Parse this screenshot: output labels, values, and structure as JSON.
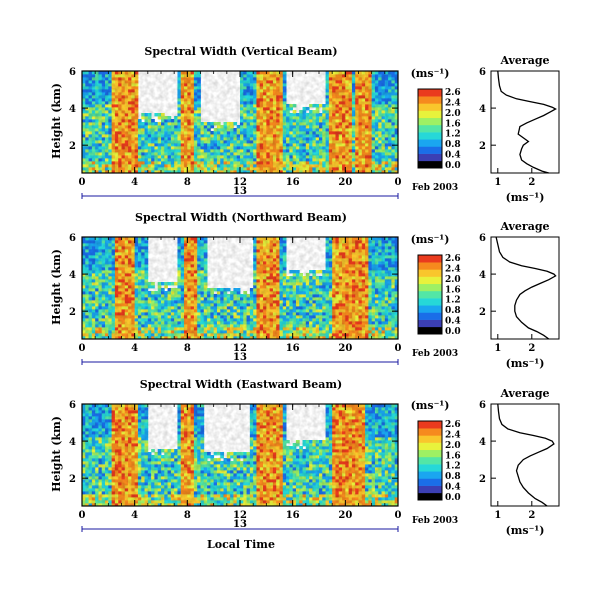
{
  "date_label": "Feb 2003",
  "day_label": "13",
  "xlabel": "Local Time",
  "colorbar": {
    "unit": "(ms⁻¹)",
    "ticks": [
      "2.6",
      "2.4",
      "2.0",
      "1.6",
      "1.2",
      "0.8",
      "0.4",
      "0.0"
    ],
    "colors": [
      "#000000",
      "#3b3fb4",
      "#1a6ee8",
      "#1aa6f0",
      "#26d8d8",
      "#53e6a6",
      "#9ef064",
      "#e8f23c",
      "#f9c62c",
      "#f68a1e",
      "#ea3b1e"
    ]
  },
  "panel_titles": [
    "Spectral Width (Vertical Beam)",
    "Spectral Width (Northward Beam)",
    "Spectral Width (Eastward Beam)"
  ],
  "chart_data": [
    {
      "type": "heatmap",
      "title": "Spectral Width (Vertical Beam)",
      "xlabel": "",
      "ylabel": "Height (km)",
      "x_ticks": [
        "0",
        "4",
        "8",
        "12",
        "16",
        "20",
        "0"
      ],
      "xlim": [
        0,
        24
      ],
      "y_ticks": [
        "6",
        "4",
        "2"
      ],
      "ylim": [
        0.5,
        6
      ],
      "value_range": [
        0,
        2.6
      ],
      "high_width_bands_hours": [
        [
          2.2,
          4.3
        ],
        [
          7.6,
          8.4
        ],
        [
          13.3,
          15.2
        ],
        [
          18.8,
          20.6
        ],
        [
          20.8,
          22.0
        ]
      ],
      "data_gaps_above_km": [
        [
          4.3,
          7.3,
          3.7
        ],
        [
          9.0,
          12.0,
          3.2
        ],
        [
          15.5,
          18.6,
          4.2
        ]
      ]
    },
    {
      "type": "line",
      "title": "Average",
      "xlabel": "(ms⁻¹)",
      "ylabel": "",
      "x_ticks": [
        "1",
        "2"
      ],
      "xlim": [
        0.8,
        2.8
      ],
      "y_ticks": [
        "6",
        "4",
        "2"
      ],
      "ylim": [
        0.5,
        6
      ],
      "x": [
        1.0,
        1.02,
        1.05,
        1.1,
        1.25,
        1.55,
        1.95,
        2.35,
        2.6,
        2.7,
        2.55,
        2.35,
        2.1,
        1.85,
        1.65,
        1.6,
        1.9,
        1.75,
        1.7,
        1.65,
        1.7,
        1.85,
        2.05,
        2.3,
        2.5
      ],
      "y": [
        6.0,
        5.6,
        5.2,
        4.9,
        4.7,
        4.5,
        4.35,
        4.2,
        4.05,
        3.95,
        3.8,
        3.6,
        3.4,
        3.2,
        3.0,
        2.6,
        2.2,
        2.0,
        1.8,
        1.5,
        1.2,
        1.0,
        0.8,
        0.6,
        0.4
      ]
    },
    {
      "type": "heatmap",
      "title": "Spectral Width (Northward Beam)",
      "xlabel": "",
      "ylabel": "Height (km)",
      "x_ticks": [
        "0",
        "4",
        "8",
        "12",
        "16",
        "20",
        "0"
      ],
      "xlim": [
        0,
        24
      ],
      "y_ticks": [
        "6",
        "4",
        "2"
      ],
      "ylim": [
        0.5,
        6
      ],
      "value_range": [
        0,
        2.6
      ],
      "high_width_bands_hours": [
        [
          2.5,
          4.0
        ],
        [
          7.8,
          8.8
        ],
        [
          13.2,
          15.0
        ],
        [
          19.0,
          21.8
        ]
      ],
      "data_gaps_above_km": [
        [
          5.0,
          7.2,
          3.5
        ],
        [
          9.4,
          13.0,
          3.3
        ],
        [
          15.4,
          18.5,
          4.3
        ]
      ]
    },
    {
      "type": "line",
      "title": "Average",
      "xlabel": "(ms⁻¹)",
      "ylabel": "",
      "x_ticks": [
        "1",
        "2"
      ],
      "xlim": [
        0.8,
        2.8
      ],
      "y_ticks": [
        "6",
        "4",
        "2"
      ],
      "ylim": [
        0.5,
        6
      ],
      "x": [
        0.95,
        1.0,
        1.05,
        1.15,
        1.35,
        1.7,
        2.1,
        2.45,
        2.65,
        2.7,
        2.5,
        2.25,
        2.0,
        1.8,
        1.65,
        1.55,
        1.5,
        1.5,
        1.55,
        1.7,
        1.9,
        2.15,
        2.35,
        2.5
      ],
      "y": [
        6.0,
        5.6,
        5.2,
        4.9,
        4.65,
        4.45,
        4.3,
        4.15,
        4.0,
        3.9,
        3.7,
        3.5,
        3.3,
        3.1,
        2.9,
        2.6,
        2.3,
        2.0,
        1.7,
        1.4,
        1.1,
        0.9,
        0.7,
        0.5
      ]
    },
    {
      "type": "heatmap",
      "title": "Spectral Width (Eastward Beam)",
      "xlabel": "Local Time",
      "ylabel": "Height (km)",
      "x_ticks": [
        "0",
        "4",
        "8",
        "12",
        "16",
        "20",
        "0"
      ],
      "xlim": [
        0,
        24
      ],
      "y_ticks": [
        "6",
        "4",
        "2"
      ],
      "ylim": [
        0.5,
        6
      ],
      "value_range": [
        0,
        2.6
      ],
      "high_width_bands_hours": [
        [
          2.3,
          4.3
        ],
        [
          7.6,
          8.5
        ],
        [
          13.3,
          15.2
        ],
        [
          19.0,
          21.4
        ]
      ],
      "data_gaps_above_km": [
        [
          5.0,
          7.3,
          3.6
        ],
        [
          9.3,
          12.8,
          3.4
        ],
        [
          15.6,
          18.6,
          4.0
        ]
      ]
    },
    {
      "type": "line",
      "title": "Average",
      "xlabel": "(ms⁻¹)",
      "ylabel": "",
      "x_ticks": [
        "1",
        "2"
      ],
      "xlim": [
        0.8,
        2.8
      ],
      "y_ticks": [
        "6",
        "4",
        "2"
      ],
      "ylim": [
        0.5,
        6
      ],
      "x": [
        1.0,
        1.02,
        1.05,
        1.12,
        1.3,
        1.65,
        2.05,
        2.4,
        2.6,
        2.65,
        2.45,
        2.2,
        1.95,
        1.75,
        1.6,
        1.55,
        1.6,
        1.65,
        1.75,
        1.9,
        2.1,
        2.3,
        2.45
      ],
      "y": [
        6.0,
        5.6,
        5.2,
        4.9,
        4.65,
        4.45,
        4.3,
        4.15,
        4.0,
        3.85,
        3.6,
        3.4,
        3.2,
        3.0,
        2.7,
        2.4,
        2.1,
        1.8,
        1.5,
        1.2,
        0.9,
        0.7,
        0.5
      ]
    }
  ]
}
